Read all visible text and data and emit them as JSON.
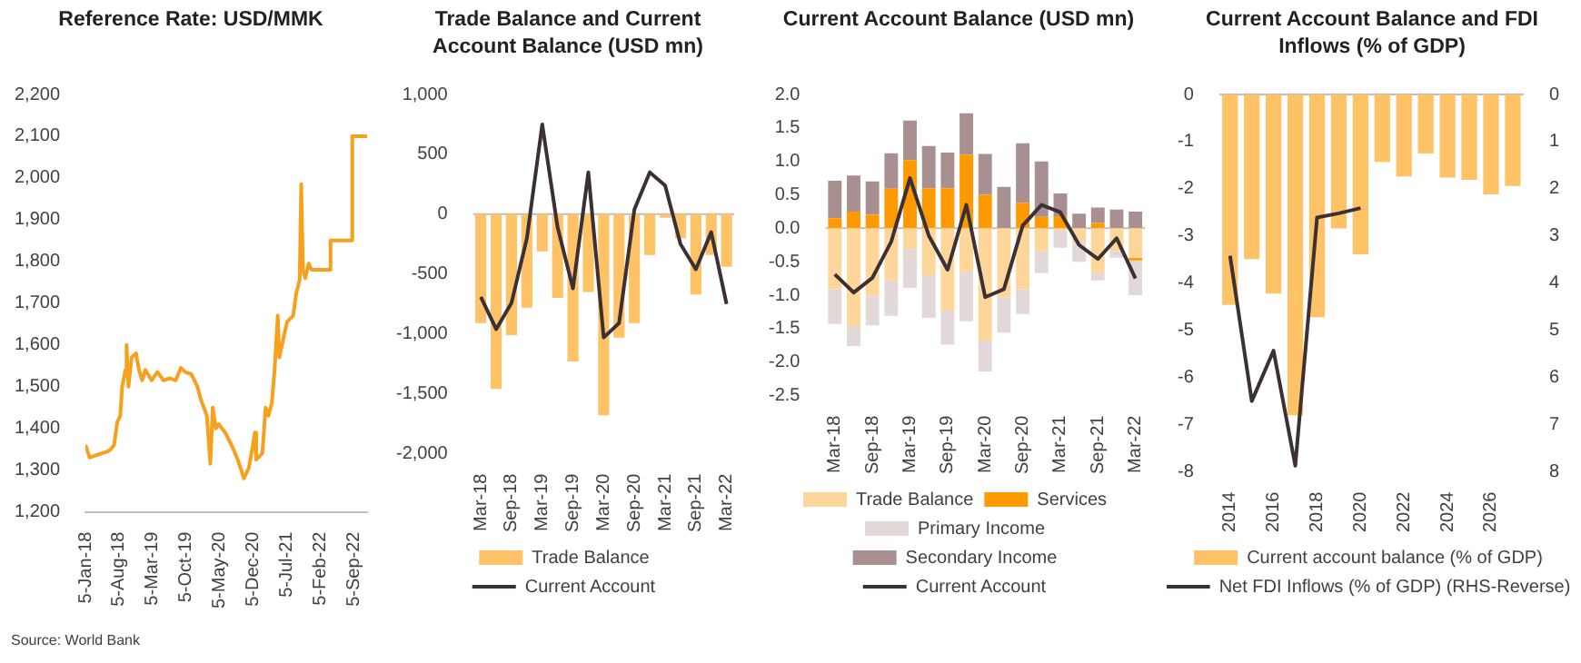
{
  "chart_data": [
    {
      "type": "line",
      "title": "Reference Rate: USD/MMK",
      "color": "#f7a01c",
      "x": [
        "2018-01-05",
        "2018-02-01",
        "2018-03-10",
        "2018-04-20",
        "2018-05-28",
        "2018-06-15",
        "2018-07-06",
        "2018-07-26",
        "2018-08-14",
        "2018-08-26",
        "2018-09-16",
        "2018-09-23",
        "2018-10-05",
        "2018-10-25",
        "2018-11-22",
        "2018-12-11",
        "2019-01-01",
        "2019-01-20",
        "2019-03-01",
        "2019-04-07",
        "2019-05-15",
        "2019-06-24",
        "2019-08-01",
        "2019-09-03",
        "2019-09-30",
        "2019-11-08",
        "2019-12-17",
        "2020-01-07",
        "2020-02-15",
        "2020-03-05",
        "2020-03-08",
        "2020-03-23",
        "2020-04-12",
        "2020-04-30",
        "2020-06-10",
        "2020-07-20",
        "2020-08-29",
        "2020-10-07",
        "2020-11-07",
        "2020-11-26",
        "2020-12-16",
        "2020-12-24",
        "2021-02-01",
        "2021-02-22",
        "2021-03-12",
        "2021-04-02",
        "2021-04-20",
        "2021-05-10",
        "2021-05-20",
        "2021-06-06",
        "2021-07-08",
        "2021-08-16",
        "2021-09-05",
        "2021-09-26",
        "2021-10-06",
        "2021-10-17",
        "2021-11-01",
        "2021-11-22",
        "2021-12-10",
        "2022-04-07",
        "2022-04-10",
        "2022-08-23",
        "2022-08-26",
        "2022-11-30"
      ],
      "values": [
        1360,
        1330,
        1335,
        1340,
        1345,
        1350,
        1360,
        1415,
        1430,
        1500,
        1540,
        1600,
        1500,
        1570,
        1580,
        1540,
        1515,
        1540,
        1515,
        1535,
        1515,
        1520,
        1515,
        1545,
        1535,
        1530,
        1500,
        1470,
        1430,
        1330,
        1315,
        1450,
        1400,
        1410,
        1390,
        1360,
        1325,
        1280,
        1305,
        1345,
        1390,
        1325,
        1340,
        1450,
        1430,
        1460,
        1540,
        1670,
        1570,
        1600,
        1655,
        1670,
        1725,
        1755,
        1985,
        1780,
        1760,
        1795,
        1780,
        1780,
        1850,
        1850,
        2100,
        2100
      ],
      "xlim": [
        "2018-01-05",
        "2022-11-30"
      ],
      "xticks": [
        {
          "value": "2018-01-05",
          "label": "5-Jan-18"
        },
        {
          "value": "2018-08-05",
          "label": "5-Aug-18"
        },
        {
          "value": "2019-03-05",
          "label": "5-Mar-19"
        },
        {
          "value": "2019-10-05",
          "label": "5-Oct-19"
        },
        {
          "value": "2020-05-05",
          "label": "5-May-20"
        },
        {
          "value": "2020-12-05",
          "label": "5-Dec-20"
        },
        {
          "value": "2021-07-05",
          "label": "5-Jul-21"
        },
        {
          "value": "2022-02-05",
          "label": "5-Feb-22"
        },
        {
          "value": "2022-09-05",
          "label": "5-Sep-22"
        }
      ],
      "ylim": [
        1200,
        2200
      ],
      "yticks": [
        {
          "value": 1200,
          "label": "1,200"
        },
        {
          "value": 1300,
          "label": "1,300"
        },
        {
          "value": 1400,
          "label": "1,400"
        },
        {
          "value": 1500,
          "label": "1,500"
        },
        {
          "value": 1600,
          "label": "1,600"
        },
        {
          "value": 1700,
          "label": "1,700"
        },
        {
          "value": 1800,
          "label": "1,800"
        },
        {
          "value": 1900,
          "label": "1,900"
        },
        {
          "value": 2000,
          "label": "2,000"
        },
        {
          "value": 2100,
          "label": "2,100"
        },
        {
          "value": 2200,
          "label": "2,200"
        }
      ],
      "annotations": [
        "Source: World Bank"
      ]
    },
    {
      "type": "bar",
      "title": "Trade Balance and Current Account Balance (USD mn)",
      "categories": [
        "Mar-18",
        null,
        "Sep-18",
        null,
        "Mar-19",
        null,
        "Sep-19",
        null,
        "Mar-20",
        null,
        "Sep-20",
        null,
        "Mar-21",
        null,
        "Sep-21",
        null,
        "Mar-22"
      ],
      "series": [
        {
          "name": "Trade Balance",
          "color": "#ffc266",
          "values": [
            -910,
            -1460,
            -1010,
            -780,
            -310,
            -700,
            -1230,
            -650,
            -1680,
            -1030,
            -910,
            -340,
            -30,
            -200,
            -670,
            -340,
            -440
          ]
        },
        {
          "name": "Current Account",
          "type": "line",
          "color": "#3b3034",
          "values": [
            -690,
            -960,
            -740,
            -200,
            750,
            -110,
            -620,
            350,
            -1030,
            -910,
            40,
            350,
            240,
            -250,
            -460,
            -150,
            -750
          ]
        }
      ],
      "ylim": [
        -2000,
        1000
      ],
      "yticks": [
        {
          "value": -2000,
          "label": "-2,000"
        },
        {
          "value": -1500,
          "label": "-1,500"
        },
        {
          "value": -1000,
          "label": "-1,000"
        },
        -500,
        0,
        500,
        {
          "value": 1000,
          "label": "1,000"
        }
      ],
      "legend": "bottom"
    },
    {
      "type": "bar",
      "title": "Current Account Balance (USD mn)",
      "stacked": true,
      "categories": [
        "Mar-18",
        null,
        "Sep-18",
        null,
        "Mar-19",
        null,
        "Sep-19",
        null,
        "Mar-20",
        null,
        "Sep-20",
        null,
        "Mar-21",
        null,
        "Sep-21",
        null,
        "Mar-22"
      ],
      "series": [
        {
          "name": "Trade Balance",
          "color": "#ffd699",
          "values": [
            -0.91,
            -1.46,
            -1.01,
            -0.78,
            -0.31,
            -0.7,
            -1.23,
            -0.65,
            -1.68,
            -1.03,
            -0.91,
            -0.34,
            -0.03,
            -0.2,
            -0.67,
            -0.34,
            -0.44
          ]
        },
        {
          "name": "Services",
          "color": "#ff9900",
          "values": [
            0.15,
            0.25,
            0.2,
            0.59,
            1.02,
            0.6,
            0.6,
            1.1,
            0.5,
            null,
            0.38,
            0.17,
            0.18,
            0,
            0.08,
            0,
            -0.04
          ]
        },
        {
          "name": "Primary Income",
          "color": "#e3d8d8",
          "values": [
            -0.52,
            -0.3,
            -0.44,
            -0.53,
            -0.58,
            -0.64,
            -0.51,
            -0.74,
            -0.46,
            -0.53,
            -0.37,
            -0.33,
            -0.26,
            -0.3,
            -0.11,
            -0.1,
            -0.52
          ]
        },
        {
          "name": "Secondary Income",
          "color": "#a99090",
          "values": [
            0.56,
            0.54,
            0.5,
            0.53,
            0.59,
            0.63,
            0.53,
            0.62,
            0.61,
            0.62,
            0.89,
            0.83,
            0.34,
            0.22,
            0.23,
            0.28,
            0.25
          ]
        },
        {
          "name": "Current Account",
          "type": "line",
          "color": "#3b3034",
          "values": [
            -0.69,
            -0.96,
            -0.74,
            -0.2,
            0.75,
            -0.11,
            -0.62,
            0.35,
            -1.03,
            -0.91,
            0.04,
            0.35,
            0.24,
            -0.25,
            -0.46,
            -0.15,
            -0.75
          ]
        }
      ],
      "ylim": [
        -2.5,
        2.0
      ],
      "yticks": [
        -2.5,
        {
          "value": -2,
          "label": "-2.0"
        },
        -1.5,
        {
          "value": -1,
          "label": "-1.0"
        },
        -0.5,
        {
          "value": 0,
          "label": "0.0"
        },
        0.5,
        {
          "value": 1,
          "label": "1.0"
        },
        1.5,
        {
          "value": 2,
          "label": "2.0"
        }
      ],
      "legend": "bottom"
    },
    {
      "type": "bar",
      "title": "Current Account Balance and FDI Inflows (% of GDP)",
      "categories": [
        "2014",
        null,
        "2016",
        null,
        "2018",
        null,
        "2020",
        null,
        "2022",
        null,
        "2024",
        null,
        "2026",
        null
      ],
      "series": [
        {
          "name": "Current account balance (% of GDP)",
          "color": "#ffc266",
          "values": [
            -4.46,
            -3.49,
            -4.22,
            -6.8,
            -4.72,
            -2.84,
            -3.39,
            -1.43,
            -1.74,
            -1.25,
            -1.76,
            -1.81,
            -2.12,
            -1.94
          ]
        },
        {
          "name": "Net FDI Inflows (% of GDP) (RHS-Reverse)",
          "type": "line",
          "axis": "y2",
          "color": "#3b3034",
          "values": [
            3.42,
            6.5,
            5.43,
            7.87,
            2.61,
            2.52,
            2.41,
            null,
            null,
            null,
            null,
            null,
            null,
            null
          ]
        }
      ],
      "ylim": [
        -8,
        0
      ],
      "yticks": [
        -8,
        -7,
        -6,
        -5,
        -4,
        -3,
        -2,
        -1,
        0
      ],
      "y2lim": [
        8,
        0
      ],
      "y2ticks": [
        0,
        1,
        2,
        3,
        4,
        5,
        6,
        7,
        8
      ],
      "legend": "bottom"
    }
  ]
}
